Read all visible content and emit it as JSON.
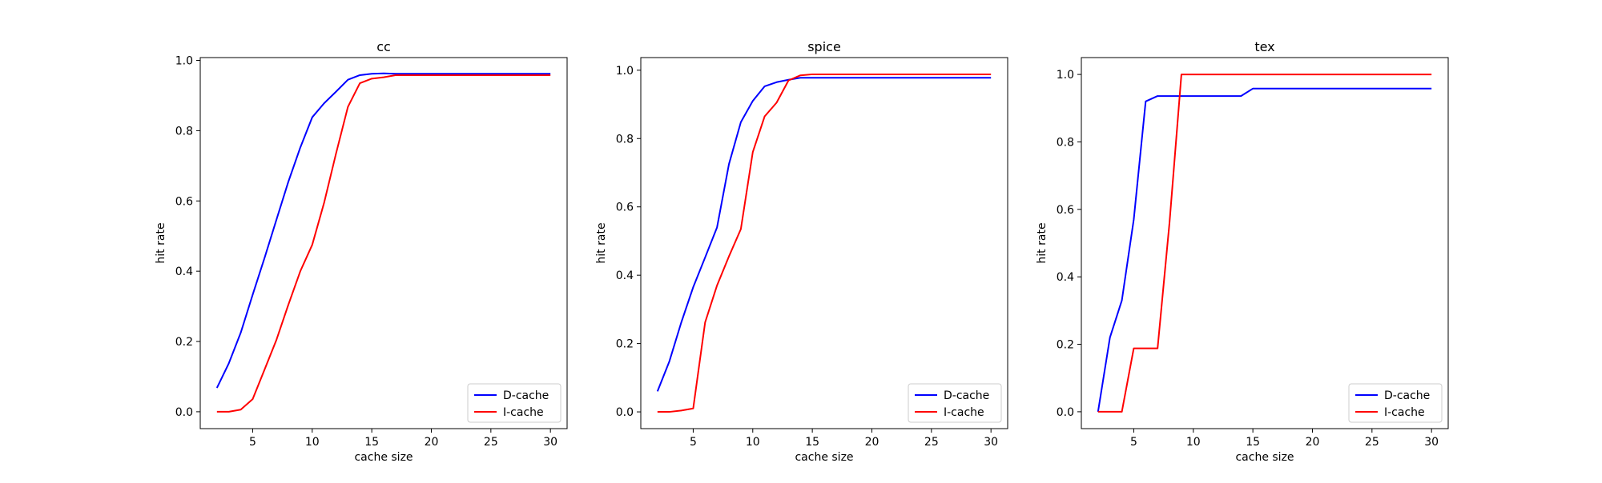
{
  "chart_data": [
    {
      "type": "line",
      "title": "cc",
      "xlabel": "cache size",
      "ylabel": "hit rate",
      "xlim": [
        0.6,
        31.4
      ],
      "ylim": [
        -0.048,
        1.008
      ],
      "xticks": [
        5,
        10,
        15,
        20,
        25,
        30
      ],
      "xtick_labels": [
        "5",
        "10",
        "15",
        "20",
        "25",
        "30"
      ],
      "yticks": [
        0.0,
        0.2,
        0.4,
        0.6,
        0.8,
        1.0
      ],
      "ytick_labels": [
        "0.0",
        "0.2",
        "0.4",
        "0.6",
        "0.8",
        "1.0"
      ],
      "grid": false,
      "legend_position": "lower-right",
      "x": [
        2,
        3,
        4,
        5,
        6,
        7,
        8,
        9,
        10,
        11,
        12,
        13,
        14,
        15,
        16,
        17,
        18,
        19,
        20,
        21,
        22,
        23,
        24,
        25,
        26,
        27,
        28,
        29,
        30
      ],
      "series": [
        {
          "name": "D-cache",
          "color": "#0000ff",
          "values": [
            0.068,
            0.138,
            0.225,
            0.333,
            0.438,
            0.547,
            0.655,
            0.752,
            0.838,
            0.878,
            0.911,
            0.945,
            0.958,
            0.962,
            0.963,
            0.962,
            0.962,
            0.962,
            0.962,
            0.962,
            0.962,
            0.962,
            0.962,
            0.962,
            0.962,
            0.962,
            0.962,
            0.962,
            0.962
          ]
        },
        {
          "name": "I-cache",
          "color": "#ff0000",
          "values": [
            0.0,
            0.0,
            0.006,
            0.036,
            0.12,
            0.205,
            0.305,
            0.4,
            0.475,
            0.595,
            0.735,
            0.868,
            0.935,
            0.948,
            0.952,
            0.958,
            0.958,
            0.958,
            0.958,
            0.958,
            0.958,
            0.958,
            0.958,
            0.958,
            0.958,
            0.958,
            0.958,
            0.958,
            0.958
          ]
        }
      ]
    },
    {
      "type": "line",
      "title": "spice",
      "xlabel": "cache size",
      "ylabel": "hit rate",
      "xlim": [
        0.6,
        31.4
      ],
      "ylim": [
        -0.049,
        1.037
      ],
      "xticks": [
        5,
        10,
        15,
        20,
        25,
        30
      ],
      "xtick_labels": [
        "5",
        "10",
        "15",
        "20",
        "25",
        "30"
      ],
      "yticks": [
        0.0,
        0.2,
        0.4,
        0.6,
        0.8,
        1.0
      ],
      "ytick_labels": [
        "0.0",
        "0.2",
        "0.4",
        "0.6",
        "0.8",
        "1.0"
      ],
      "grid": false,
      "legend_position": "lower-right",
      "x": [
        2,
        3,
        4,
        5,
        6,
        7,
        8,
        9,
        10,
        11,
        12,
        13,
        14,
        15,
        16,
        17,
        18,
        19,
        20,
        21,
        22,
        23,
        24,
        25,
        26,
        27,
        28,
        29,
        30
      ],
      "series": [
        {
          "name": "D-cache",
          "color": "#0000ff",
          "values": [
            0.06,
            0.148,
            0.262,
            0.365,
            0.452,
            0.54,
            0.725,
            0.848,
            0.91,
            0.953,
            0.965,
            0.972,
            0.978,
            0.978,
            0.978,
            0.978,
            0.978,
            0.978,
            0.978,
            0.978,
            0.978,
            0.978,
            0.978,
            0.978,
            0.978,
            0.978,
            0.978,
            0.978,
            0.978
          ]
        },
        {
          "name": "I-cache",
          "color": "#ff0000",
          "values": [
            0.0,
            0.0,
            0.004,
            0.01,
            0.262,
            0.37,
            0.455,
            0.535,
            0.76,
            0.865,
            0.905,
            0.97,
            0.985,
            0.988,
            0.988,
            0.988,
            0.988,
            0.988,
            0.988,
            0.988,
            0.988,
            0.988,
            0.988,
            0.988,
            0.988,
            0.988,
            0.988,
            0.988,
            0.988
          ]
        }
      ]
    },
    {
      "type": "line",
      "title": "tex",
      "xlabel": "cache size",
      "ylabel": "hit rate",
      "xlim": [
        0.6,
        31.4
      ],
      "ylim": [
        -0.05,
        1.05
      ],
      "xticks": [
        5,
        10,
        15,
        20,
        25,
        30
      ],
      "xtick_labels": [
        "5",
        "10",
        "15",
        "20",
        "25",
        "30"
      ],
      "yticks": [
        0.0,
        0.2,
        0.4,
        0.6,
        0.8,
        1.0
      ],
      "ytick_labels": [
        "0.0",
        "0.2",
        "0.4",
        "0.6",
        "0.8",
        "1.0"
      ],
      "grid": false,
      "legend_position": "lower-right",
      "x": [
        2,
        3,
        4,
        5,
        6,
        7,
        8,
        9,
        10,
        11,
        12,
        13,
        14,
        15,
        16,
        17,
        18,
        19,
        20,
        21,
        22,
        23,
        24,
        25,
        26,
        27,
        28,
        29,
        30
      ],
      "series": [
        {
          "name": "D-cache",
          "color": "#0000ff",
          "values": [
            0.0,
            0.22,
            0.33,
            0.57,
            0.92,
            0.936,
            0.936,
            0.936,
            0.936,
            0.936,
            0.936,
            0.936,
            0.936,
            0.958,
            0.958,
            0.958,
            0.958,
            0.958,
            0.958,
            0.958,
            0.958,
            0.958,
            0.958,
            0.958,
            0.958,
            0.958,
            0.958,
            0.958,
            0.958
          ]
        },
        {
          "name": "I-cache",
          "color": "#ff0000",
          "values": [
            0.0,
            0.0,
            0.0,
            0.188,
            0.188,
            0.188,
            0.56,
            1.0,
            1.0,
            1.0,
            1.0,
            1.0,
            1.0,
            1.0,
            1.0,
            1.0,
            1.0,
            1.0,
            1.0,
            1.0,
            1.0,
            1.0,
            1.0,
            1.0,
            1.0,
            1.0,
            1.0,
            1.0,
            1.0
          ]
        }
      ]
    }
  ]
}
